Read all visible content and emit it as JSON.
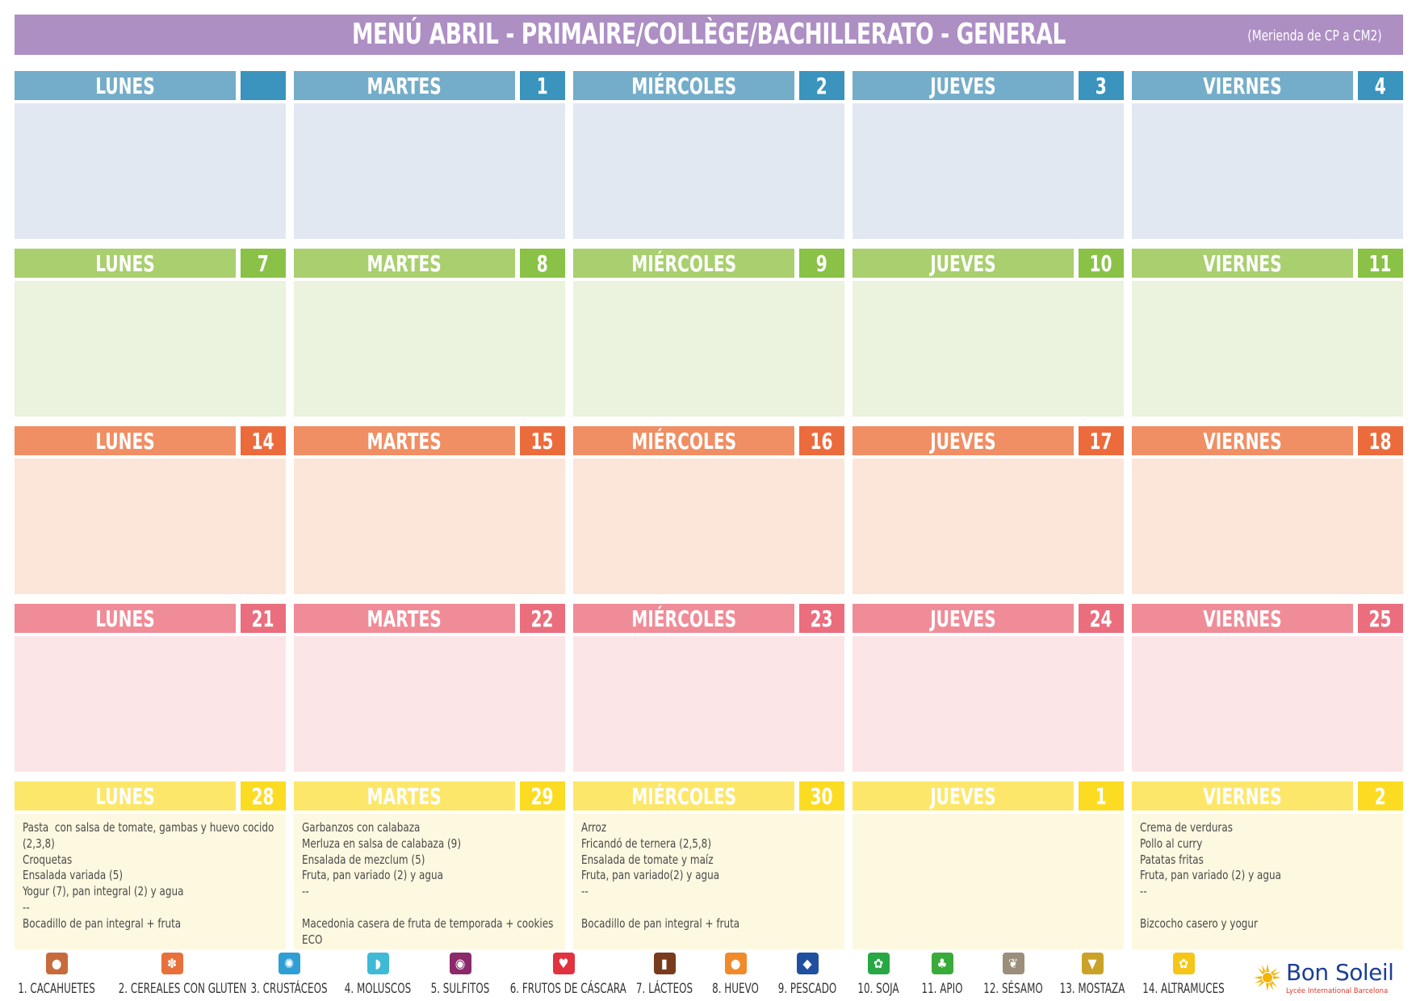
{
  "header": {
    "title": "MENÚ ABRIL - PRIMAIRE/COLLÈGE/BACHILLERATO - GENERAL",
    "subtitle": "(Merienda de CP a CM2)"
  },
  "weeks": [
    {
      "colors": {
        "header": "#74adc9",
        "number": "#3a94bd",
        "body": "#e1e8f1"
      },
      "days": [
        {
          "name": "LUNES",
          "number": "",
          "menu": []
        },
        {
          "name": "MARTES",
          "number": "1",
          "menu": []
        },
        {
          "name": "MIÉRCOLES",
          "number": "2",
          "menu": []
        },
        {
          "name": "JUEVES",
          "number": "3",
          "menu": []
        },
        {
          "name": "VIERNES",
          "number": "4",
          "menu": []
        }
      ]
    },
    {
      "colors": {
        "header": "#a9cf6f",
        "number": "#8ac147",
        "body": "#ebf2dd"
      },
      "days": [
        {
          "name": "LUNES",
          "number": "7",
          "menu": []
        },
        {
          "name": "MARTES",
          "number": "8",
          "menu": []
        },
        {
          "name": "MIÉRCOLES",
          "number": "9",
          "menu": []
        },
        {
          "name": "JUEVES",
          "number": "10",
          "menu": []
        },
        {
          "name": "VIERNES",
          "number": "11",
          "menu": []
        }
      ]
    },
    {
      "colors": {
        "header": "#f08e64",
        "number": "#ec6b3d",
        "body": "#fce5d9"
      },
      "days": [
        {
          "name": "LUNES",
          "number": "14",
          "menu": []
        },
        {
          "name": "MARTES",
          "number": "15",
          "menu": []
        },
        {
          "name": "MIÉRCOLES",
          "number": "16",
          "menu": []
        },
        {
          "name": "JUEVES",
          "number": "17",
          "menu": []
        },
        {
          "name": "VIERNES",
          "number": "18",
          "menu": []
        }
      ]
    },
    {
      "colors": {
        "header": "#f08c97",
        "number": "#ea6e7d",
        "body": "#fce5e7"
      },
      "days": [
        {
          "name": "LUNES",
          "number": "21",
          "menu": []
        },
        {
          "name": "MARTES",
          "number": "22",
          "menu": []
        },
        {
          "name": "MIÉRCOLES",
          "number": "23",
          "menu": []
        },
        {
          "name": "JUEVES",
          "number": "24",
          "menu": []
        },
        {
          "name": "VIERNES",
          "number": "25",
          "menu": []
        }
      ]
    },
    {
      "colors": {
        "header": "#fde76b",
        "number": "#fbdc23",
        "body": "#fdf8e0"
      },
      "days": [
        {
          "name": "LUNES",
          "number": "28",
          "menu": [
            "Pasta  con salsa de tomate, gambas y huevo cocido",
            "(2,3,8)",
            "Croquetas",
            "Ensalada variada (5)",
            "Yogur (7), pan integral (2) y agua",
            "--",
            "Bocadillo de pan integral + fruta"
          ]
        },
        {
          "name": "MARTES",
          "number": "29",
          "menu": [
            "Garbanzos con calabaza",
            "Merluza en salsa de calabaza (9)",
            "Ensalada de mezclum (5)",
            "Fruta, pan variado (2) y agua",
            "--",
            "",
            "Macedonia casera de fruta de temporada + cookies",
            "ECO"
          ]
        },
        {
          "name": "MIÉRCOLES",
          "number": "30",
          "menu": [
            "Arroz",
            "Fricandó de ternera (2,5,8)",
            "Ensalada de tomate y maíz",
            "Fruta, pan variado(2) y agua",
            "--",
            "",
            "Bocadillo de pan integral + fruta"
          ]
        },
        {
          "name": "JUEVES",
          "number": "1",
          "menu": []
        },
        {
          "name": "VIERNES",
          "number": "2",
          "menu": [
            "Crema de verduras",
            "Pollo al curry",
            "Patatas fritas",
            "Fruta, pan variado (2) y agua",
            "--",
            "",
            "Bizcocho casero y yogur"
          ]
        }
      ]
    }
  ],
  "allergens": [
    {
      "label": "1. CACAHUETES",
      "icon": "peanut-icon",
      "color": "#c76a3c"
    },
    {
      "label": "2. CEREALES CON GLUTEN",
      "icon": "wheat-icon",
      "color": "#e8703a"
    },
    {
      "label": "3. CRUSTÁCEOS",
      "icon": "crab-icon",
      "color": "#2f9fd3"
    },
    {
      "label": "4. MOLUSCOS",
      "icon": "shell-icon",
      "color": "#3fb9d6"
    },
    {
      "label": "5. SULFITOS",
      "icon": "sulphite-icon",
      "color": "#8a2a6a"
    },
    {
      "label": "6. FRUTOS DE CÁSCARA",
      "icon": "nut-icon",
      "color": "#e0333f"
    },
    {
      "label": "7. LÁCTEOS",
      "icon": "milk-icon",
      "color": "#7a3a1e"
    },
    {
      "label": "8. HUEVO",
      "icon": "egg-icon",
      "color": "#f08a2a"
    },
    {
      "label": "9. PESCADO",
      "icon": "fish-icon",
      "color": "#1f4f9e"
    },
    {
      "label": "10. SOJA",
      "icon": "soy-icon",
      "color": "#28a745"
    },
    {
      "label": "11. APIO",
      "icon": "celery-icon",
      "color": "#3aaa3a"
    },
    {
      "label": "12. SÉSAMO",
      "icon": "sesame-icon",
      "color": "#9b8e7a"
    },
    {
      "label": "13. MOSTAZA",
      "icon": "mustard-icon",
      "color": "#c9a227"
    },
    {
      "label": "14. ALTRAMUCES",
      "icon": "lupin-icon",
      "color": "#f5c518"
    }
  ],
  "logo": {
    "name": "Bon Soleil",
    "subtitle": "Lycée International Barcelona"
  }
}
